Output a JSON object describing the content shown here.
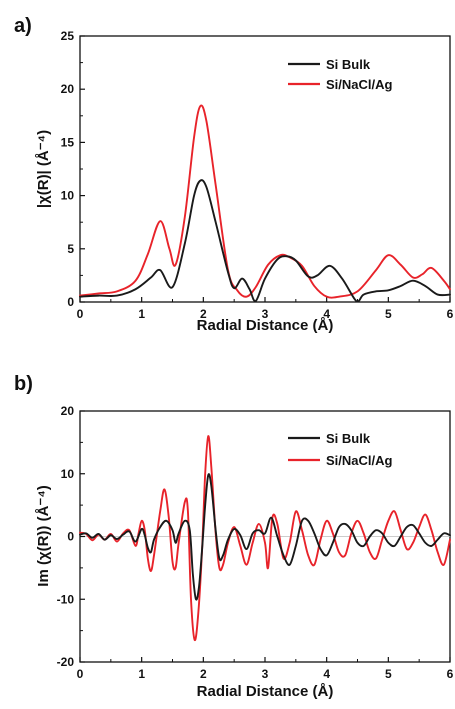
{
  "colors": {
    "si_bulk": "#1a1a1a",
    "si_nacl_ag": "#e8232a"
  },
  "chart_data": [
    {
      "type": "line",
      "panel": "a)",
      "xlabel": "Radial Distance (Å)",
      "ylabel": "|χ(R)| (Å⁻⁴)",
      "xlim": [
        0,
        6
      ],
      "ylim": [
        0,
        25
      ],
      "xticks": [
        "0",
        "1",
        "2",
        "3",
        "4",
        "5",
        "6"
      ],
      "yticks": [
        "0",
        "5",
        "10",
        "15",
        "20",
        "25"
      ],
      "grid": false,
      "legend_position": "top-right",
      "series": [
        {
          "name": "Si Bulk",
          "color": "#1a1a1a",
          "points": [
            [
              0,
              0.5
            ],
            [
              0.3,
              0.6
            ],
            [
              0.6,
              0.6
            ],
            [
              0.9,
              1.2
            ],
            [
              1.15,
              2.3
            ],
            [
              1.3,
              3.0
            ],
            [
              1.5,
              1.4
            ],
            [
              1.7,
              5.5
            ],
            [
              1.85,
              10.0
            ],
            [
              1.95,
              11.4
            ],
            [
              2.05,
              10.8
            ],
            [
              2.2,
              7.5
            ],
            [
              2.4,
              2.8
            ],
            [
              2.5,
              1.3
            ],
            [
              2.63,
              2.2
            ],
            [
              2.75,
              1.2
            ],
            [
              2.85,
              0.1
            ],
            [
              3.0,
              2.2
            ],
            [
              3.2,
              4.0
            ],
            [
              3.35,
              4.3
            ],
            [
              3.5,
              3.9
            ],
            [
              3.7,
              2.4
            ],
            [
              3.85,
              2.5
            ],
            [
              4.05,
              3.4
            ],
            [
              4.25,
              2.2
            ],
            [
              4.45,
              0.3
            ],
            [
              4.52,
              0.1
            ],
            [
              4.6,
              0.7
            ],
            [
              4.8,
              1.0
            ],
            [
              5.0,
              1.1
            ],
            [
              5.2,
              1.5
            ],
            [
              5.4,
              2.0
            ],
            [
              5.6,
              1.5
            ],
            [
              5.8,
              0.7
            ],
            [
              6.0,
              0.7
            ]
          ]
        },
        {
          "name": "Si/NaCl/Ag",
          "color": "#e8232a",
          "points": [
            [
              0,
              0.6
            ],
            [
              0.3,
              0.8
            ],
            [
              0.6,
              1.0
            ],
            [
              0.9,
              2.0
            ],
            [
              1.1,
              4.5
            ],
            [
              1.3,
              7.6
            ],
            [
              1.45,
              5.0
            ],
            [
              1.55,
              3.5
            ],
            [
              1.7,
              8.0
            ],
            [
              1.85,
              15.5
            ],
            [
              1.95,
              18.4
            ],
            [
              2.05,
              17.0
            ],
            [
              2.2,
              11.0
            ],
            [
              2.4,
              3.0
            ],
            [
              2.55,
              1.1
            ],
            [
              2.7,
              0.5
            ],
            [
              2.85,
              1.4
            ],
            [
              3.05,
              3.5
            ],
            [
              3.25,
              4.4
            ],
            [
              3.4,
              4.2
            ],
            [
              3.6,
              3.4
            ],
            [
              3.8,
              1.5
            ],
            [
              4.0,
              0.5
            ],
            [
              4.2,
              0.5
            ],
            [
              4.5,
              1.0
            ],
            [
              4.8,
              3.0
            ],
            [
              5.0,
              4.4
            ],
            [
              5.2,
              3.5
            ],
            [
              5.4,
              2.3
            ],
            [
              5.55,
              2.6
            ],
            [
              5.7,
              3.2
            ],
            [
              5.9,
              2.0
            ],
            [
              6.0,
              1.2
            ]
          ]
        }
      ]
    },
    {
      "type": "line",
      "panel": "b)",
      "xlabel": "Radial Distance (Å)",
      "ylabel": "Im (χ(R)) (Å⁻⁴)",
      "xlim": [
        0,
        6
      ],
      "ylim": [
        -20,
        20
      ],
      "xticks": [
        "0",
        "1",
        "2",
        "3",
        "4",
        "5",
        "6"
      ],
      "yticks": [
        "-20",
        "-10",
        "0",
        "10",
        "20"
      ],
      "grid": false,
      "legend_position": "top-right",
      "series": [
        {
          "name": "Si Bulk",
          "color": "#1a1a1a",
          "points": [
            [
              0,
              0.3
            ],
            [
              0.1,
              0.5
            ],
            [
              0.2,
              -0.2
            ],
            [
              0.3,
              0.4
            ],
            [
              0.4,
              -0.5
            ],
            [
              0.5,
              0.2
            ],
            [
              0.6,
              -0.4
            ],
            [
              0.7,
              0.3
            ],
            [
              0.8,
              0.8
            ],
            [
              0.9,
              -0.8
            ],
            [
              1.0,
              1.2
            ],
            [
              1.05,
              0.2
            ],
            [
              1.1,
              -1.8
            ],
            [
              1.15,
              -2.5
            ],
            [
              1.2,
              -0.5
            ],
            [
              1.3,
              1.5
            ],
            [
              1.4,
              2.5
            ],
            [
              1.5,
              1.0
            ],
            [
              1.55,
              -1.0
            ],
            [
              1.6,
              0.5
            ],
            [
              1.7,
              2.5
            ],
            [
              1.78,
              1.0
            ],
            [
              1.83,
              -6.0
            ],
            [
              1.88,
              -10.0
            ],
            [
              1.93,
              -8.0
            ],
            [
              1.98,
              -2.0
            ],
            [
              2.03,
              5.0
            ],
            [
              2.08,
              9.8
            ],
            [
              2.13,
              8.0
            ],
            [
              2.2,
              1.0
            ],
            [
              2.26,
              -3.5
            ],
            [
              2.32,
              -3.0
            ],
            [
              2.4,
              -0.5
            ],
            [
              2.5,
              1.2
            ],
            [
              2.6,
              0.2
            ],
            [
              2.7,
              -2.0
            ],
            [
              2.8,
              0.5
            ],
            [
              2.9,
              1.0
            ],
            [
              3.0,
              0.5
            ],
            [
              3.1,
              3.0
            ],
            [
              3.2,
              0.0
            ],
            [
              3.3,
              -3.0
            ],
            [
              3.4,
              -4.5
            ],
            [
              3.5,
              -1.5
            ],
            [
              3.6,
              2.5
            ],
            [
              3.7,
              2.5
            ],
            [
              3.8,
              0.5
            ],
            [
              3.9,
              -2.0
            ],
            [
              4.0,
              -3.0
            ],
            [
              4.1,
              -1.0
            ],
            [
              4.2,
              1.5
            ],
            [
              4.3,
              2.0
            ],
            [
              4.4,
              1.0
            ],
            [
              4.5,
              -1.0
            ],
            [
              4.6,
              -1.5
            ],
            [
              4.7,
              0.0
            ],
            [
              4.8,
              1.0
            ],
            [
              4.9,
              0.5
            ],
            [
              5.0,
              -1.0
            ],
            [
              5.1,
              -1.5
            ],
            [
              5.2,
              0.0
            ],
            [
              5.3,
              1.5
            ],
            [
              5.4,
              1.8
            ],
            [
              5.5,
              0.5
            ],
            [
              5.6,
              -1.0
            ],
            [
              5.7,
              -1.5
            ],
            [
              5.8,
              -0.5
            ],
            [
              5.9,
              0.5
            ],
            [
              6.0,
              0.2
            ]
          ]
        },
        {
          "name": "Si/NaCl/Ag",
          "color": "#e8232a",
          "points": [
            [
              0,
              0.6
            ],
            [
              0.1,
              0.4
            ],
            [
              0.2,
              -0.6
            ],
            [
              0.3,
              0.3
            ],
            [
              0.4,
              -0.5
            ],
            [
              0.5,
              0.4
            ],
            [
              0.6,
              -0.8
            ],
            [
              0.7,
              0.5
            ],
            [
              0.8,
              1.0
            ],
            [
              0.9,
              -1.5
            ],
            [
              0.95,
              0.5
            ],
            [
              1.0,
              2.5
            ],
            [
              1.05,
              1.0
            ],
            [
              1.1,
              -3.5
            ],
            [
              1.15,
              -5.5
            ],
            [
              1.2,
              -3.0
            ],
            [
              1.3,
              4.0
            ],
            [
              1.37,
              7.5
            ],
            [
              1.44,
              3.0
            ],
            [
              1.5,
              -4.0
            ],
            [
              1.55,
              -5.0
            ],
            [
              1.6,
              -1.0
            ],
            [
              1.7,
              5.5
            ],
            [
              1.75,
              4.0
            ],
            [
              1.8,
              -10.0
            ],
            [
              1.86,
              -16.5
            ],
            [
              1.92,
              -12.0
            ],
            [
              1.98,
              -2.0
            ],
            [
              2.03,
              10.0
            ],
            [
              2.08,
              16.0
            ],
            [
              2.13,
              11.0
            ],
            [
              2.2,
              0.5
            ],
            [
              2.26,
              -5.0
            ],
            [
              2.32,
              -4.5
            ],
            [
              2.4,
              -1.0
            ],
            [
              2.5,
              1.5
            ],
            [
              2.6,
              -1.5
            ],
            [
              2.7,
              -4.5
            ],
            [
              2.8,
              -1.0
            ],
            [
              2.9,
              2.0
            ],
            [
              3.0,
              -1.0
            ],
            [
              3.05,
              -5.0
            ],
            [
              3.12,
              3.0
            ],
            [
              3.2,
              2.0
            ],
            [
              3.3,
              -3.5
            ],
            [
              3.4,
              -1.0
            ],
            [
              3.5,
              4.0
            ],
            [
              3.6,
              1.0
            ],
            [
              3.7,
              -3.0
            ],
            [
              3.8,
              -4.5
            ],
            [
              3.9,
              -0.5
            ],
            [
              4.0,
              2.5
            ],
            [
              4.1,
              0.5
            ],
            [
              4.2,
              -2.5
            ],
            [
              4.3,
              -3.0
            ],
            [
              4.4,
              0.5
            ],
            [
              4.5,
              2.5
            ],
            [
              4.6,
              0.5
            ],
            [
              4.7,
              -2.5
            ],
            [
              4.8,
              -3.5
            ],
            [
              4.9,
              -0.5
            ],
            [
              5.0,
              2.5
            ],
            [
              5.1,
              4.0
            ],
            [
              5.2,
              1.0
            ],
            [
              5.3,
              -2.0
            ],
            [
              5.4,
              -1.0
            ],
            [
              5.5,
              1.5
            ],
            [
              5.6,
              3.5
            ],
            [
              5.7,
              1.0
            ],
            [
              5.8,
              -2.5
            ],
            [
              5.9,
              -4.5
            ],
            [
              6.0,
              -0.5
            ]
          ]
        }
      ]
    }
  ]
}
